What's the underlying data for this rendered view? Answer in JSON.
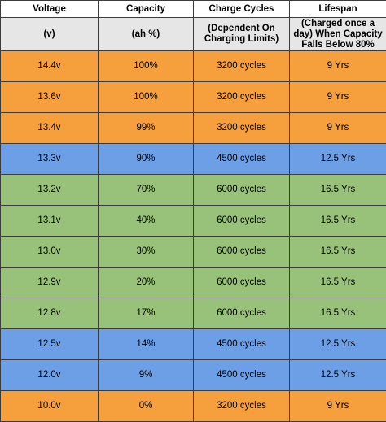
{
  "colors": {
    "orange": "#f5a03c",
    "blue": "#6d9fe6",
    "green": "#98c27a",
    "header_bg": "#e6e6e6",
    "border": "#3b3b3b"
  },
  "header": {
    "titles": [
      "Voltage",
      "Capacity",
      "Charge Cycles",
      "Lifespan"
    ],
    "subtitles": [
      "(v)",
      "(ah %)",
      "(Dependent On Charging Limits)",
      "(Charged once a day) When Capacity Falls Below 80%"
    ]
  },
  "rows": [
    {
      "voltage": "14.4v",
      "capacity": "100%",
      "cycles": "3200 cycles",
      "lifespan": "9 Yrs",
      "color": "orange"
    },
    {
      "voltage": "13.6v",
      "capacity": "100%",
      "cycles": "3200 cycles",
      "lifespan": "9 Yrs",
      "color": "orange"
    },
    {
      "voltage": "13.4v",
      "capacity": "99%",
      "cycles": "3200 cycles",
      "lifespan": "9 Yrs",
      "color": "orange"
    },
    {
      "voltage": "13.3v",
      "capacity": "90%",
      "cycles": "4500 cycles",
      "lifespan": "12.5 Yrs",
      "color": "blue"
    },
    {
      "voltage": "13.2v",
      "capacity": "70%",
      "cycles": "6000 cycles",
      "lifespan": "16.5 Yrs",
      "color": "green"
    },
    {
      "voltage": "13.1v",
      "capacity": "40%",
      "cycles": "6000 cycles",
      "lifespan": "16.5 Yrs",
      "color": "green"
    },
    {
      "voltage": "13.0v",
      "capacity": "30%",
      "cycles": "6000 cycles",
      "lifespan": "16.5 Yrs",
      "color": "green"
    },
    {
      "voltage": "12.9v",
      "capacity": "20%",
      "cycles": "6000 cycles",
      "lifespan": "16.5 Yrs",
      "color": "green"
    },
    {
      "voltage": "12.8v",
      "capacity": "17%",
      "cycles": "6000 cycles",
      "lifespan": "16.5 Yrs",
      "color": "green"
    },
    {
      "voltage": "12.5v",
      "capacity": "14%",
      "cycles": "4500 cycles",
      "lifespan": "12.5 Yrs",
      "color": "blue"
    },
    {
      "voltage": "12.0v",
      "capacity": "9%",
      "cycles": "4500 cycles",
      "lifespan": "12.5 Yrs",
      "color": "blue"
    },
    {
      "voltage": "10.0v",
      "capacity": "0%",
      "cycles": "3200 cycles",
      "lifespan": "9 Yrs",
      "color": "orange"
    }
  ]
}
